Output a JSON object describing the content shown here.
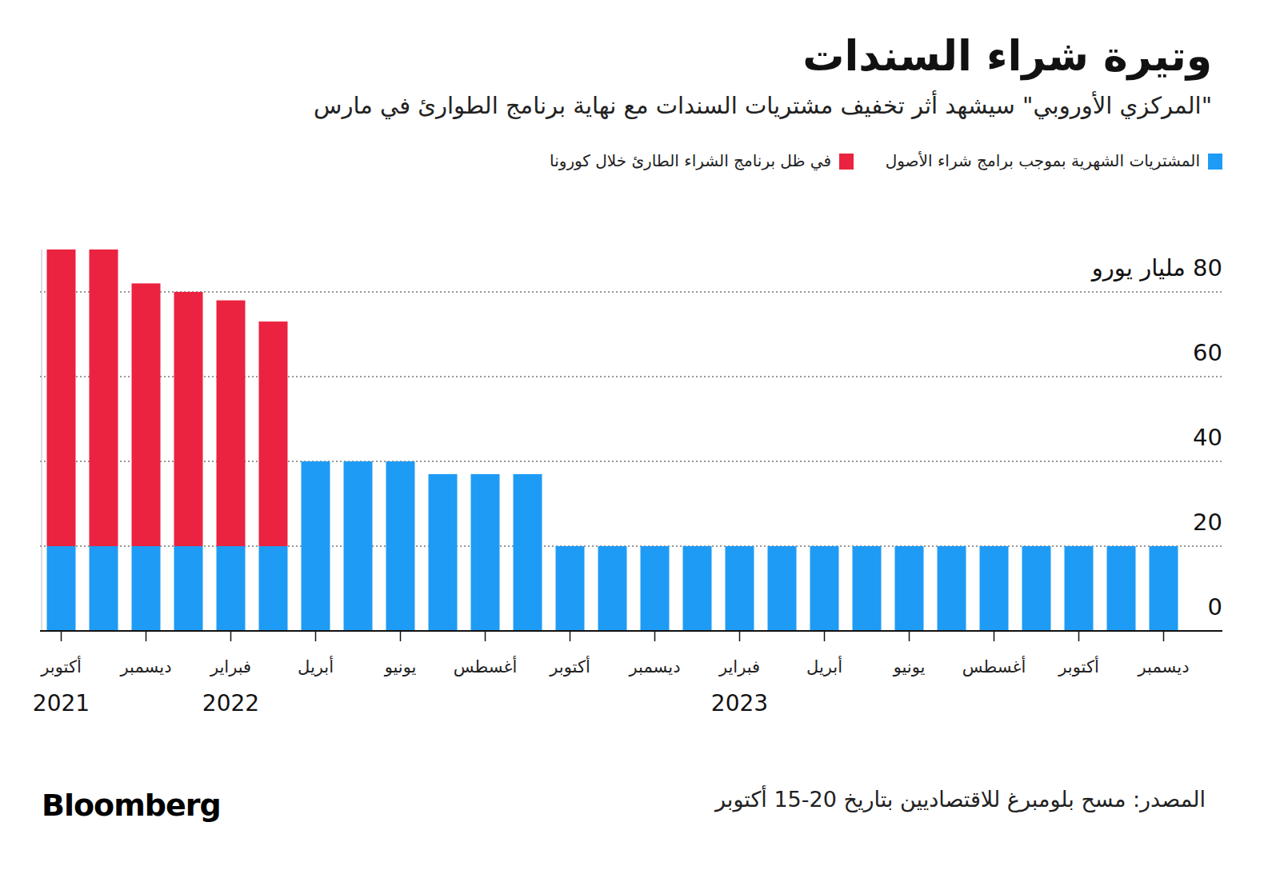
{
  "chart_data": {
    "type": "bar",
    "title": "وتيرة شراء السندات",
    "subtitle": "\"المركزي الأوروبي\" سيشهد أثر تخفيف مشتريات السندات مع نهاية برنامج الطوارئ في مارس",
    "source": "المصدر: مسح بلومبرغ للاقتصاديين بتاريخ 20-15 أكتوبر",
    "brand": "Bloomberg",
    "stacked": true,
    "grid": true,
    "legend": "top",
    "categories": [
      "أكتوبر",
      null,
      "ديسمبر",
      null,
      "فبراير",
      null,
      "أبريل",
      null,
      "يونيو",
      null,
      "أغسطس",
      null,
      "أكتوبر",
      null,
      "ديسمبر",
      null,
      "فبراير",
      null,
      "أبريل",
      null,
      "يونيو",
      null,
      "أغسطس",
      null,
      "أكتوبر",
      null,
      "ديسمبر"
    ],
    "x_year_labels": [
      "2021",
      null,
      null,
      null,
      "2022",
      null,
      null,
      null,
      null,
      null,
      null,
      null,
      null,
      null,
      null,
      null,
      "2023",
      null,
      null,
      null,
      null,
      null,
      null,
      null,
      null,
      null,
      null
    ],
    "series": [
      {
        "name": "المشتريات الشهرية بموجب برامج شراء الأصول",
        "color": "#1e9bf5",
        "values": [
          20,
          20,
          20,
          20,
          20,
          20,
          40,
          40,
          40,
          37,
          37,
          37,
          20,
          20,
          20,
          20,
          20,
          20,
          20,
          20,
          20,
          20,
          20,
          20,
          20,
          20,
          20
        ]
      },
      {
        "name": "في ظل برنامج الشراء الطارئ خلال كورونا",
        "color": "#eb2340",
        "values": [
          70,
          70,
          62,
          60,
          58,
          53,
          null,
          null,
          null,
          null,
          null,
          null,
          null,
          null,
          null,
          null,
          null,
          null,
          null,
          null,
          null,
          null,
          null,
          null,
          null,
          null,
          null
        ]
      }
    ],
    "ylim": [
      0,
      90
    ],
    "yticks": [
      0,
      20,
      40,
      60,
      {
        "value": 80,
        "label": "80 مليار يورو"
      }
    ]
  }
}
